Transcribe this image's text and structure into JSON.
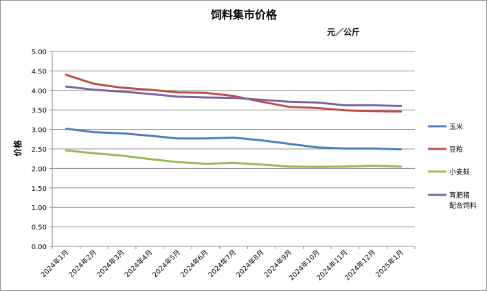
{
  "chart_data": {
    "type": "line",
    "title": "饲料集市价格",
    "unit_label": "元／公斤",
    "xlabel": "",
    "ylabel": "价格",
    "ylim": [
      0,
      5
    ],
    "yticks": [
      "0.00",
      "0.50",
      "1.00",
      "1.50",
      "2.00",
      "2.50",
      "3.00",
      "3.50",
      "4.00",
      "4.50",
      "5.00"
    ],
    "grid": "horizontal",
    "legend_position": "right",
    "categories": [
      "2024年1月",
      "2024年2月",
      "2024年3月",
      "2024年4月",
      "2024年5月",
      "2024年6月",
      "2024年7月",
      "2024年8月",
      "2024年9月",
      "2024年10月",
      "2024年11月",
      "2024年12月",
      "2025年1月"
    ],
    "series": [
      {
        "name": "玉米",
        "color": "#4a7ebb",
        "values": [
          3.02,
          2.93,
          2.9,
          2.84,
          2.77,
          2.77,
          2.79,
          2.72,
          2.63,
          2.54,
          2.51,
          2.51,
          2.49
        ]
      },
      {
        "name": "豆粕",
        "color": "#be4b48",
        "values": [
          4.4,
          4.17,
          4.07,
          4.02,
          3.95,
          3.94,
          3.86,
          3.71,
          3.58,
          3.55,
          3.49,
          3.47,
          3.46
        ]
      },
      {
        "name": "小麦麸",
        "color": "#98b954",
        "values": [
          2.46,
          2.39,
          2.33,
          2.24,
          2.16,
          2.12,
          2.14,
          2.1,
          2.05,
          2.04,
          2.05,
          2.07,
          2.05
        ]
      },
      {
        "name": "育肥猪配合饲料",
        "legend_lines": [
          "育肥猪",
          "配合饲料"
        ],
        "color": "#7d60a0",
        "values": [
          4.1,
          4.02,
          3.97,
          3.91,
          3.84,
          3.82,
          3.81,
          3.76,
          3.71,
          3.69,
          3.62,
          3.62,
          3.6
        ]
      }
    ]
  }
}
